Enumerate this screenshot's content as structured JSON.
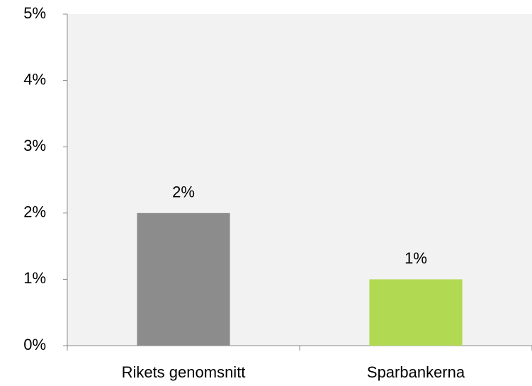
{
  "chart_data": {
    "type": "bar",
    "categories": [
      "Rikets genomsnitt",
      "Sparbankerna"
    ],
    "values": [
      2,
      1
    ],
    "value_labels": [
      "2%",
      "1%"
    ],
    "colors": [
      "#8c8c8c",
      "#b2d952"
    ],
    "ylim": [
      0,
      5
    ],
    "yticks": [
      {
        "value": 0,
        "label": "0%"
      },
      {
        "value": 1,
        "label": "1%"
      },
      {
        "value": 2,
        "label": "2%"
      },
      {
        "value": 3,
        "label": "3%"
      },
      {
        "value": 4,
        "label": "4%"
      },
      {
        "value": 5,
        "label": "5%"
      }
    ],
    "grid": false
  }
}
